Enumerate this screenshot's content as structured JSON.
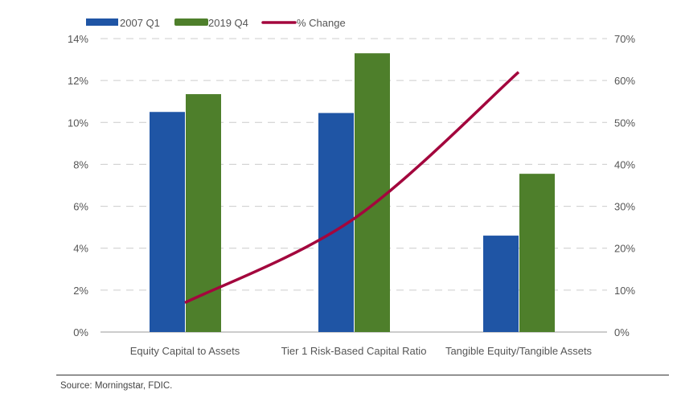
{
  "chart_data": {
    "type": "bar+line",
    "categories": [
      "Equity Capital to Assets",
      "Tier 1 Risk-Based Capital Ratio",
      "Tangible Equity/Tangible Assets"
    ],
    "series": [
      {
        "name": "2007 Q1",
        "kind": "bar",
        "axis": "left",
        "color": "#1f55a5",
        "values": [
          10.5,
          10.45,
          4.6
        ]
      },
      {
        "name": "2019 Q4",
        "kind": "bar",
        "axis": "left",
        "color": "#4e7f2b",
        "values": [
          11.35,
          13.3,
          7.55
        ]
      },
      {
        "name": "% Change",
        "kind": "line",
        "axis": "right",
        "color": "#a3063d",
        "values": [
          7,
          27,
          62
        ]
      }
    ],
    "left_axis": {
      "ylim": [
        0,
        14
      ],
      "ticks": [
        "0%",
        "2%",
        "4%",
        "6%",
        "8%",
        "10%",
        "12%",
        "14%"
      ]
    },
    "right_axis": {
      "ylim": [
        0,
        70
      ],
      "ticks": [
        "0%",
        "10%",
        "20%",
        "30%",
        "40%",
        "50%",
        "60%",
        "70%"
      ]
    },
    "grid": true,
    "legend": "top-left"
  },
  "source": "Source: Morningstar, FDIC."
}
